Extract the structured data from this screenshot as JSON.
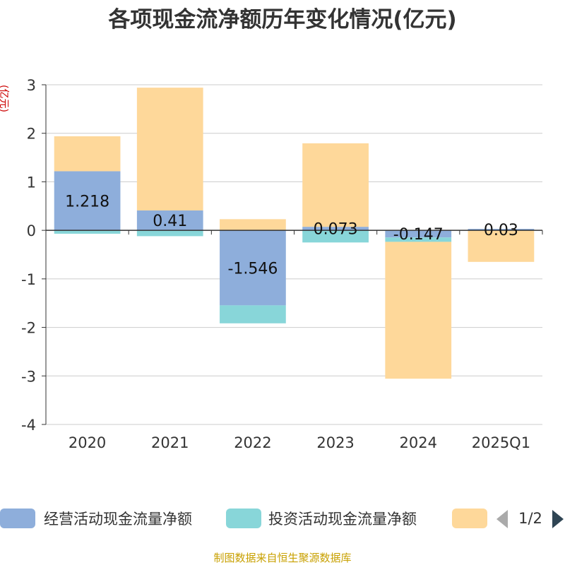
{
  "chart_data": {
    "type": "bar",
    "stacked": true,
    "title": "各项现金流净额历年变化情况(亿元)",
    "ylabel": "(亿元)",
    "categories": [
      "2020",
      "2021",
      "2022",
      "2023",
      "2024",
      "2025Q1"
    ],
    "ylim": [
      -4,
      3
    ],
    "yticks": [
      3,
      2,
      1,
      0,
      -1,
      -2,
      -3,
      -4
    ],
    "grid": true,
    "series": [
      {
        "name": "经营活动现金流量净额",
        "color": "#8eaedb",
        "values": [
          1.218,
          0.41,
          -1.546,
          0.073,
          -0.147,
          0.03
        ],
        "labels": [
          "1.218",
          "0.41",
          "-1.546",
          "0.073",
          "-0.147",
          "0.03"
        ]
      },
      {
        "name": "投资活动现金流量净额",
        "color": "#88d6d9",
        "values": [
          -0.07,
          -0.12,
          -0.37,
          -0.25,
          -0.09,
          0.0
        ]
      },
      {
        "name": "",
        "color": "#fed89a",
        "values": [
          0.72,
          2.53,
          0.23,
          1.72,
          -2.82,
          -0.65
        ]
      }
    ],
    "legend": {
      "position": "bottom",
      "page": "1/2"
    },
    "source": "制图数据来自恒生聚源数据库"
  },
  "colors": {
    "title": "#333333",
    "axis": "#333333",
    "grid": "#cccccc",
    "ylabel": "#cc0000",
    "source": "#c8a000",
    "nav_active": "#2f4554",
    "nav_inactive": "#aaaaaa"
  },
  "icons": {
    "prev": "chevron-left-icon",
    "next": "chevron-right-icon"
  }
}
